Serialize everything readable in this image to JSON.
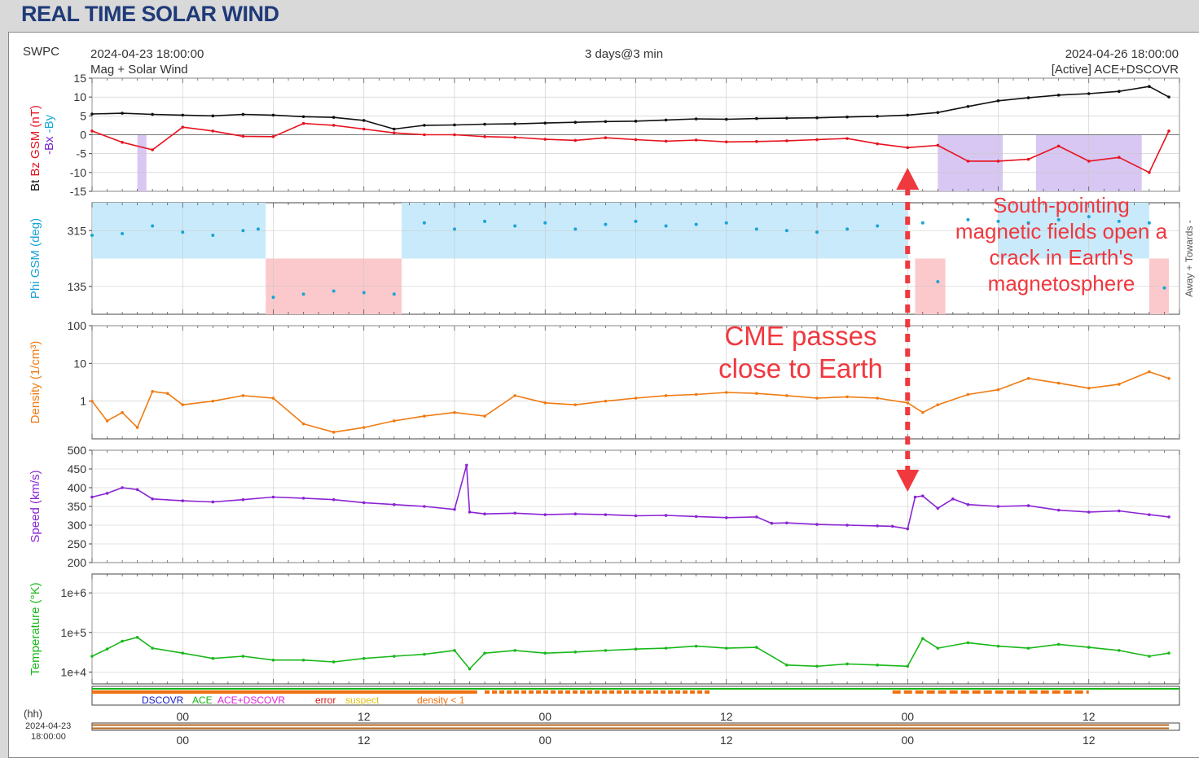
{
  "page": {
    "title": "REAL TIME SOLAR WIND"
  },
  "header": {
    "source": "SWPC",
    "start_time": "2024-04-23 18:00:00",
    "end_time": "2024-04-26 18:00:00",
    "subtitle": "Mag + Solar Wind",
    "span": "3 days@3 min",
    "active": "[Active] ACE+DSCOVR"
  },
  "colors": {
    "bt": "#111111",
    "bz": "#e8121f",
    "bx": "#7b1fd6",
    "by": "#14a9d9",
    "phi": "#1aa3d8",
    "phi_band_toward": "#c9eafa",
    "phi_band_away": "#fbc9cc",
    "bz_shade": "#d7c7f2",
    "density": "#f07b12",
    "speed": "#8a24d4",
    "temperature": "#19b81a",
    "annotation": "#f0383f",
    "grid": "#c8c8c8"
  },
  "legend": {
    "dscovr": "DSCOVR",
    "ace": "ACE",
    "both": "ACE+DSCOVR",
    "error": "error",
    "suspect": "suspect",
    "density_lt1": "density < 1",
    "dscovr_color": "#1818c8",
    "ace_color": "#18b418",
    "both_color": "#e020d8",
    "error_color": "#d81818",
    "suspect_color": "#e0c010",
    "density_color": "#f07010"
  },
  "time_axis": {
    "unit_label": "(hh)",
    "start_date": "2024-04-23",
    "start_clock": "18:00:00",
    "hours": 72,
    "ticks": [
      {
        "hour": 6,
        "label": "00"
      },
      {
        "hour": 18,
        "label": "12"
      },
      {
        "hour": 30,
        "label": "00"
      },
      {
        "hour": 42,
        "label": "12"
      },
      {
        "hour": 54,
        "label": "00"
      },
      {
        "hour": 66,
        "label": "12"
      }
    ]
  },
  "annotations": {
    "cme": [
      "CME passes",
      "close to Earth"
    ],
    "south": [
      "South-pointing",
      "magnetic fields open a",
      "crack in Earth's",
      "magnetosphere"
    ],
    "arrow_hour": 54
  },
  "chart_data": [
    {
      "type": "line",
      "name": "bfield",
      "ylabel_parts": [
        "Bt",
        "Bz GSM (nT)",
        "-Bx",
        "-By"
      ],
      "ylim": [
        -15,
        15
      ],
      "yticks": [
        15,
        10,
        5,
        0,
        -5,
        -10,
        -15
      ],
      "x_hours": [
        0,
        2,
        4,
        6,
        8,
        10,
        12,
        14,
        16,
        18,
        20,
        22,
        24,
        26,
        28,
        30,
        32,
        34,
        36,
        38,
        40,
        42,
        44,
        46,
        48,
        50,
        52,
        54,
        56,
        58,
        60,
        62,
        64,
        66,
        68,
        70,
        71.3
      ],
      "series": [
        {
          "name": "Bt",
          "key": "bt",
          "values": [
            5.5,
            5.7,
            5.4,
            5.2,
            5,
            5.4,
            5.2,
            4.8,
            4.6,
            3.8,
            1.5,
            2.5,
            2.6,
            2.8,
            2.9,
            3.1,
            3.3,
            3.5,
            3.6,
            3.9,
            4.2,
            4.1,
            4.3,
            4.4,
            4.5,
            4.7,
            4.9,
            5.2,
            5.9,
            7.5,
            9,
            9.8,
            10.5,
            10.9,
            11.5,
            12.8,
            10
          ]
        },
        {
          "name": "Bz GSM",
          "key": "bz",
          "values": [
            1,
            -2,
            -4,
            2,
            1,
            -0.4,
            -0.5,
            3,
            2.5,
            1.5,
            0.5,
            0,
            0,
            -0.5,
            -0.7,
            -1.2,
            -1.5,
            -0.8,
            -1.3,
            -1.7,
            -1.4,
            -1.9,
            -1.8,
            -1.6,
            -1.3,
            -1,
            -2.4,
            -3.4,
            -2.8,
            -7,
            -7,
            -6.5,
            -3,
            -7,
            -6,
            -10,
            1
          ]
        }
      ],
      "shaded_hours": [
        [
          3.0,
          3.6
        ],
        [
          56.0,
          60.3
        ],
        [
          62.5,
          69.5
        ]
      ]
    },
    {
      "type": "scatter",
      "name": "phi",
      "ylabel": "Phi GSM (deg)",
      "right_label": "Away +   Towards -",
      "ylim": [
        45,
        405
      ],
      "yticks": [
        315,
        135
      ],
      "toward_hours": [
        [
          0,
          11.5
        ],
        [
          20.5,
          54.0
        ],
        [
          60.0,
          70.0
        ]
      ],
      "away_hours": [
        [
          11.5,
          20.5
        ],
        [
          54.5,
          56.5
        ],
        [
          70.0,
          71.3
        ]
      ],
      "x_hours": [
        0,
        2,
        4,
        6,
        8,
        10,
        11,
        12,
        14,
        16,
        18,
        20,
        22,
        24,
        26,
        28,
        30,
        32,
        34,
        36,
        38,
        40,
        42,
        44,
        46,
        48,
        50,
        52,
        54,
        55,
        56,
        58,
        60,
        62,
        64,
        66,
        68,
        70,
        71
      ],
      "values": [
        300,
        305,
        330,
        310,
        300,
        315,
        320,
        100,
        110,
        120,
        115,
        110,
        340,
        320,
        345,
        330,
        340,
        320,
        335,
        345,
        330,
        335,
        340,
        320,
        315,
        310,
        320,
        330,
        350,
        340,
        150,
        350,
        345,
        340,
        350,
        360,
        345,
        340,
        130
      ]
    },
    {
      "type": "line",
      "name": "density",
      "ylabel": "Density (1/cm³)",
      "yscale": "log",
      "ylim": [
        0.1,
        100
      ],
      "yticks": [
        100,
        10,
        1
      ],
      "ytick_labels": [
        "100",
        "10",
        "1"
      ],
      "x_hours": [
        0,
        1,
        2,
        3,
        4,
        5,
        6,
        8,
        10,
        12,
        14,
        16,
        18,
        20,
        22,
        24,
        26,
        28,
        30,
        32,
        34,
        36,
        38,
        40,
        42,
        44,
        46,
        48,
        50,
        52,
        54,
        55,
        56,
        58,
        60,
        62,
        64,
        66,
        68,
        70,
        71.3
      ],
      "values": [
        1,
        0.3,
        0.5,
        0.2,
        1.8,
        1.6,
        0.8,
        1,
        1.4,
        1.2,
        0.25,
        0.15,
        0.2,
        0.3,
        0.4,
        0.5,
        0.4,
        1.4,
        0.9,
        0.8,
        1,
        1.2,
        1.4,
        1.5,
        1.7,
        1.6,
        1.4,
        1.2,
        1.3,
        1.2,
        0.9,
        0.5,
        0.8,
        1.5,
        2,
        4,
        3,
        2.2,
        2.8,
        6,
        4
      ]
    },
    {
      "type": "line",
      "name": "speed",
      "ylabel": "Speed (km/s)",
      "ylim": [
        200,
        500
      ],
      "yticks": [
        500,
        450,
        400,
        350,
        300,
        250,
        200
      ],
      "x_hours": [
        0,
        1,
        2,
        3,
        4,
        6,
        8,
        10,
        12,
        14,
        16,
        18,
        20,
        22,
        24,
        24.8,
        25,
        26,
        28,
        30,
        32,
        34,
        36,
        38,
        40,
        42,
        44,
        45,
        46,
        48,
        50,
        52,
        53,
        54,
        54.5,
        55,
        56,
        57,
        58,
        60,
        62,
        64,
        66,
        68,
        70,
        71.3
      ],
      "values": [
        375,
        385,
        400,
        395,
        370,
        365,
        362,
        368,
        375,
        372,
        368,
        360,
        355,
        350,
        342,
        460,
        335,
        330,
        332,
        328,
        330,
        328,
        325,
        326,
        323,
        320,
        322,
        305,
        306,
        302,
        300,
        298,
        297,
        290,
        375,
        378,
        345,
        370,
        355,
        350,
        352,
        340,
        335,
        338,
        328,
        322
      ]
    },
    {
      "type": "line",
      "name": "temperature",
      "ylabel": "Temperature (°K)",
      "yscale": "log",
      "ylim": [
        5000,
        3000000
      ],
      "yticks": [
        1000000,
        100000,
        10000
      ],
      "ytick_labels": [
        "1e+6",
        "1e+5",
        "1e+4"
      ],
      "x_hours": [
        0,
        1,
        2,
        3,
        4,
        6,
        8,
        10,
        12,
        14,
        16,
        18,
        20,
        22,
        24,
        25,
        26,
        28,
        30,
        32,
        34,
        36,
        38,
        40,
        42,
        44,
        46,
        48,
        50,
        52,
        54,
        55,
        56,
        58,
        60,
        62,
        64,
        66,
        68,
        70,
        71.3
      ],
      "values": [
        25000,
        38000,
        60000,
        75000,
        40000,
        30000,
        22000,
        25000,
        20000,
        20000,
        18000,
        22000,
        25000,
        28000,
        35000,
        12000,
        30000,
        35000,
        30000,
        32000,
        35000,
        38000,
        40000,
        45000,
        40000,
        42000,
        15000,
        14000,
        16000,
        15000,
        14000,
        70000,
        40000,
        55000,
        45000,
        40000,
        50000,
        42000,
        35000,
        25000,
        30000
      ]
    }
  ]
}
